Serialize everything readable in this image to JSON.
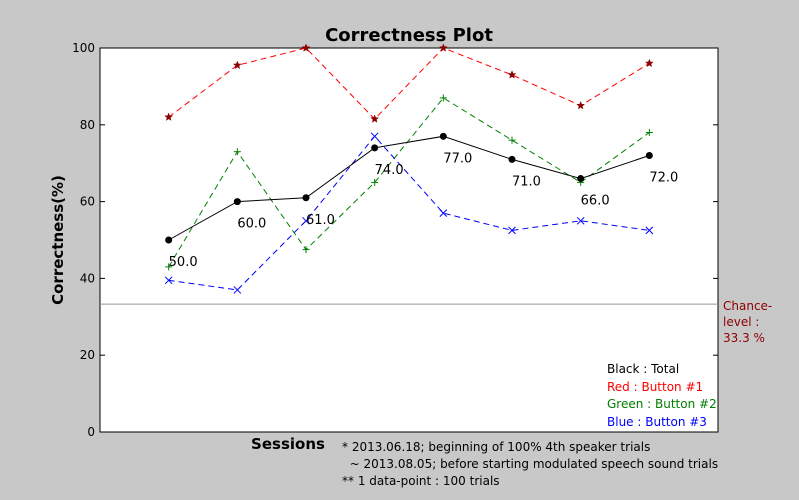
{
  "chart_data": {
    "type": "line",
    "title": "Correctness Plot",
    "xlabel": "Sessions",
    "ylabel": "Correctness(%)",
    "ylim": [
      0,
      100
    ],
    "yticks": [
      "0",
      "20",
      "40",
      "60",
      "80",
      "100"
    ],
    "grid": false,
    "x": [
      1,
      2,
      3,
      4,
      5,
      6,
      7,
      8
    ],
    "xlim": [
      0,
      9
    ],
    "series": [
      {
        "name": "Total",
        "color": "#000000",
        "style": "solid",
        "marker": "circle",
        "values": [
          50,
          60,
          61,
          74,
          77,
          71,
          66,
          72
        ]
      },
      {
        "name": "Button #1",
        "color": "#ff0000",
        "style": "dashed",
        "marker": "star",
        "values": [
          82,
          95.5,
          100,
          81.5,
          100,
          93,
          85,
          96
        ]
      },
      {
        "name": "Button #2",
        "color": "#008000",
        "style": "dashed",
        "marker": "plus",
        "values": [
          43,
          73,
          47.5,
          65,
          87,
          76,
          65,
          78
        ]
      },
      {
        "name": "Button #3",
        "color": "#0000ff",
        "style": "dashed",
        "marker": "x",
        "values": [
          39.5,
          37,
          55,
          77,
          57,
          52.5,
          55,
          52.5
        ]
      }
    ],
    "data_labels": [
      "50.0",
      "60.0",
      "61.0",
      "74.0",
      "77.0",
      "71.0",
      "66.0",
      "72.0"
    ],
    "chance_level": {
      "value": 33.3,
      "label_line1": "Chance-",
      "label_line2": "level :",
      "label_line3": "33.3 %",
      "color": "#8b0000"
    },
    "legend": {
      "placement": "bottom-right",
      "entries": [
        {
          "text": "Black : Total",
          "color": "#000000"
        },
        {
          "text": "Red : Button #1",
          "color": "#ff0000"
        },
        {
          "text": "Green : Button #2",
          "color": "#008000"
        },
        {
          "text": "Blue : Button #3",
          "color": "#0000ff"
        }
      ]
    }
  },
  "notes": [
    "* 2013.06.18; beginning of 100% 4th speaker trials",
    "  ~ 2013.08.05; before starting modulated speech sound trials",
    "** 1 data-point : 100 trials"
  ]
}
